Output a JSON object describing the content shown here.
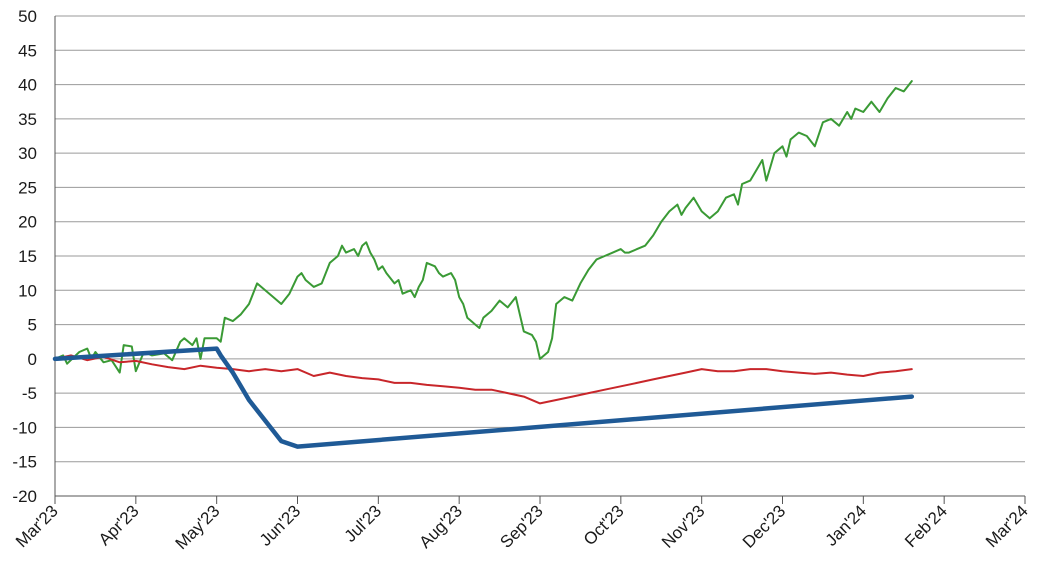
{
  "chart_data": {
    "type": "line",
    "title": "",
    "xlabel": "",
    "ylabel": "",
    "ylim": [
      -20,
      50
    ],
    "yticks": [
      50,
      45,
      40,
      35,
      30,
      25,
      20,
      15,
      10,
      5,
      0,
      -5,
      -10,
      -15,
      -20
    ],
    "xticks": [
      "Mar'23",
      "Apr'23",
      "May'23",
      "Jun'23",
      "Jul'23",
      "Aug'23",
      "Sep'23",
      "Oct'23",
      "Nov'23",
      "Dec'23",
      "Jan'24",
      "Feb'24",
      "Mar'24"
    ],
    "grid": "horizontal",
    "legend": "none",
    "series": [
      {
        "color": "#3a9a35",
        "points": [
          [
            0,
            0
          ],
          [
            0.1,
            0.5
          ],
          [
            0.15,
            -0.7
          ],
          [
            0.3,
            1.0
          ],
          [
            0.4,
            1.5
          ],
          [
            0.45,
            0.0
          ],
          [
            0.5,
            1.0
          ],
          [
            0.6,
            -0.5
          ],
          [
            0.7,
            -0.2
          ],
          [
            0.8,
            -2.0
          ],
          [
            0.85,
            2.0
          ],
          [
            0.95,
            1.8
          ],
          [
            1.0,
            -1.8
          ],
          [
            1.1,
            1.0
          ],
          [
            1.2,
            0.5
          ],
          [
            1.35,
            0.8
          ],
          [
            1.45,
            -0.2
          ],
          [
            1.55,
            2.5
          ],
          [
            1.6,
            3.0
          ],
          [
            1.7,
            2.0
          ],
          [
            1.75,
            3.0
          ],
          [
            1.8,
            0.0
          ],
          [
            1.85,
            3.0
          ],
          [
            2.0,
            3.0
          ],
          [
            2.05,
            2.5
          ],
          [
            2.1,
            6.0
          ],
          [
            2.2,
            5.5
          ],
          [
            2.3,
            6.5
          ],
          [
            2.4,
            8.0
          ],
          [
            2.5,
            11.0
          ],
          [
            2.6,
            10.0
          ],
          [
            2.7,
            9.0
          ],
          [
            2.8,
            8.0
          ],
          [
            2.9,
            9.5
          ],
          [
            3.0,
            12.0
          ],
          [
            3.05,
            12.5
          ],
          [
            3.1,
            11.5
          ],
          [
            3.2,
            10.5
          ],
          [
            3.3,
            11.0
          ],
          [
            3.4,
            14.0
          ],
          [
            3.5,
            15.0
          ],
          [
            3.55,
            16.5
          ],
          [
            3.6,
            15.5
          ],
          [
            3.7,
            16.0
          ],
          [
            3.75,
            15.0
          ],
          [
            3.8,
            16.5
          ],
          [
            3.85,
            17.0
          ],
          [
            3.9,
            15.5
          ],
          [
            3.95,
            14.5
          ],
          [
            4.0,
            13.0
          ],
          [
            4.05,
            13.5
          ],
          [
            4.1,
            12.5
          ],
          [
            4.2,
            11.0
          ],
          [
            4.25,
            11.5
          ],
          [
            4.3,
            9.5
          ],
          [
            4.4,
            10.0
          ],
          [
            4.45,
            9.0
          ],
          [
            4.5,
            10.5
          ],
          [
            4.55,
            11.5
          ],
          [
            4.6,
            14.0
          ],
          [
            4.7,
            13.5
          ],
          [
            4.75,
            12.5
          ],
          [
            4.8,
            12.0
          ],
          [
            4.9,
            12.5
          ],
          [
            4.95,
            11.5
          ],
          [
            5.0,
            9.0
          ],
          [
            5.05,
            8.0
          ],
          [
            5.1,
            6.0
          ],
          [
            5.15,
            5.5
          ],
          [
            5.2,
            5.0
          ],
          [
            5.25,
            4.5
          ],
          [
            5.3,
            6.0
          ],
          [
            5.4,
            7.0
          ],
          [
            5.5,
            8.5
          ],
          [
            5.6,
            7.5
          ],
          [
            5.7,
            9.0
          ],
          [
            5.75,
            6.5
          ],
          [
            5.8,
            4.0
          ],
          [
            5.9,
            3.5
          ],
          [
            5.95,
            2.5
          ],
          [
            6.0,
            0.0
          ],
          [
            6.1,
            1.0
          ],
          [
            6.15,
            3.0
          ],
          [
            6.2,
            8.0
          ],
          [
            6.3,
            9.0
          ],
          [
            6.4,
            8.5
          ],
          [
            6.5,
            11.0
          ],
          [
            6.6,
            13.0
          ],
          [
            6.7,
            14.5
          ],
          [
            6.8,
            15.0
          ],
          [
            6.9,
            15.5
          ],
          [
            7.0,
            16.0
          ],
          [
            7.05,
            15.5
          ],
          [
            7.1,
            15.5
          ],
          [
            7.2,
            16.0
          ],
          [
            7.3,
            16.5
          ],
          [
            7.4,
            18.0
          ],
          [
            7.5,
            20.0
          ],
          [
            7.6,
            21.5
          ],
          [
            7.7,
            22.5
          ],
          [
            7.75,
            21.0
          ],
          [
            7.8,
            22.0
          ],
          [
            7.9,
            23.5
          ],
          [
            8.0,
            21.5
          ],
          [
            8.1,
            20.5
          ],
          [
            8.2,
            21.5
          ],
          [
            8.3,
            23.5
          ],
          [
            8.4,
            24.0
          ],
          [
            8.45,
            22.5
          ],
          [
            8.5,
            25.5
          ],
          [
            8.6,
            26.0
          ],
          [
            8.7,
            28.0
          ],
          [
            8.75,
            29.0
          ],
          [
            8.8,
            26.0
          ],
          [
            8.85,
            28.0
          ],
          [
            8.9,
            30.0
          ],
          [
            9.0,
            31.0
          ],
          [
            9.05,
            29.5
          ],
          [
            9.1,
            32.0
          ],
          [
            9.2,
            33.0
          ],
          [
            9.3,
            32.5
          ],
          [
            9.4,
            31.0
          ],
          [
            9.5,
            34.5
          ],
          [
            9.6,
            35.0
          ],
          [
            9.7,
            34.0
          ],
          [
            9.8,
            36.0
          ],
          [
            9.85,
            35.0
          ],
          [
            9.9,
            36.5
          ],
          [
            10.0,
            36.0
          ],
          [
            10.1,
            37.5
          ],
          [
            10.2,
            36.0
          ],
          [
            10.3,
            38.0
          ],
          [
            10.4,
            39.5
          ],
          [
            10.5,
            39.0
          ],
          [
            10.6,
            40.5
          ]
        ]
      },
      {
        "color": "#c8262a",
        "points": [
          [
            0,
            0
          ],
          [
            0.2,
            0.5
          ],
          [
            0.4,
            -0.2
          ],
          [
            0.6,
            0.3
          ],
          [
            0.8,
            -0.5
          ],
          [
            1.0,
            -0.3
          ],
          [
            1.2,
            -0.8
          ],
          [
            1.4,
            -1.2
          ],
          [
            1.6,
            -1.5
          ],
          [
            1.8,
            -1.0
          ],
          [
            2.0,
            -1.3
          ],
          [
            2.2,
            -1.5
          ],
          [
            2.4,
            -1.8
          ],
          [
            2.6,
            -1.5
          ],
          [
            2.8,
            -1.8
          ],
          [
            3.0,
            -1.5
          ],
          [
            3.2,
            -2.5
          ],
          [
            3.4,
            -2.0
          ],
          [
            3.6,
            -2.5
          ],
          [
            3.8,
            -2.8
          ],
          [
            4.0,
            -3.0
          ],
          [
            4.2,
            -3.5
          ],
          [
            4.4,
            -3.5
          ],
          [
            4.6,
            -3.8
          ],
          [
            4.8,
            -4.0
          ],
          [
            5.0,
            -4.2
          ],
          [
            5.2,
            -4.5
          ],
          [
            5.4,
            -4.5
          ],
          [
            5.6,
            -5.0
          ],
          [
            5.8,
            -5.5
          ],
          [
            6.0,
            -6.5
          ],
          [
            6.2,
            -6.0
          ],
          [
            6.4,
            -5.5
          ],
          [
            6.6,
            -5.0
          ],
          [
            6.8,
            -4.5
          ],
          [
            7.0,
            -4.0
          ],
          [
            7.2,
            -3.5
          ],
          [
            7.4,
            -3.0
          ],
          [
            7.6,
            -2.5
          ],
          [
            7.8,
            -2.0
          ],
          [
            8.0,
            -1.5
          ],
          [
            8.2,
            -1.8
          ],
          [
            8.4,
            -1.8
          ],
          [
            8.6,
            -1.5
          ],
          [
            8.8,
            -1.5
          ],
          [
            9.0,
            -1.8
          ],
          [
            9.2,
            -2.0
          ],
          [
            9.4,
            -2.2
          ],
          [
            9.6,
            -2.0
          ],
          [
            9.8,
            -2.3
          ],
          [
            10.0,
            -2.5
          ],
          [
            10.2,
            -2.0
          ],
          [
            10.4,
            -1.8
          ],
          [
            10.6,
            -1.5
          ]
        ]
      },
      {
        "color": "#1f5a96",
        "points": [
          [
            0,
            0
          ],
          [
            2.0,
            1.5
          ],
          [
            2.05,
            0.5
          ],
          [
            2.2,
            -2.0
          ],
          [
            2.4,
            -6.0
          ],
          [
            2.6,
            -9.0
          ],
          [
            2.8,
            -12.0
          ],
          [
            3.0,
            -12.8
          ],
          [
            10.6,
            -5.5
          ]
        ]
      }
    ]
  }
}
